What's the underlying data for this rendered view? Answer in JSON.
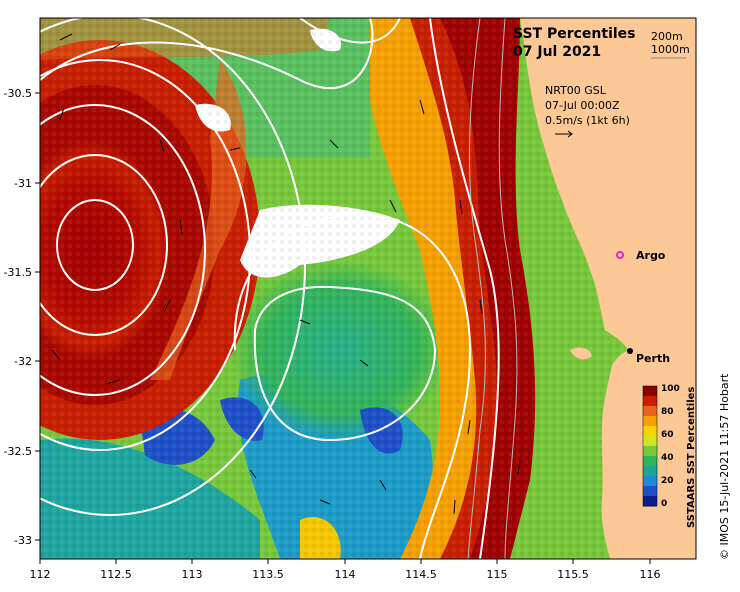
{
  "title": {
    "line1": "SST Percentiles",
    "line2": "07 Jul 2021"
  },
  "depth_legend": {
    "upper": "200m",
    "lower": "1000m"
  },
  "current_info": {
    "line1": "NRT00 GSL",
    "line2": "07-Jul 00:00Z",
    "line3": "0.5m/s (1kt 6h)"
  },
  "markers": {
    "argo": "Argo",
    "perth": "Perth"
  },
  "colorbar": {
    "title": "SSTAARS SST Percentiles",
    "ticks": [
      "100",
      "80",
      "60",
      "40",
      "20",
      "0"
    ],
    "colors": [
      "#8b0000",
      "#c81e00",
      "#e8641e",
      "#f5a000",
      "#fad200",
      "#d2e61e",
      "#78c83c",
      "#32b45a",
      "#1ea596",
      "#1e8cd2",
      "#1e50c8",
      "#0a1e8c"
    ]
  },
  "copyright": "© IMOS 15-Jul-2021 11:57 Hobart",
  "axes": {
    "x_ticks": [
      "112",
      "112.5",
      "113",
      "113.5",
      "114",
      "114.5",
      "115",
      "115.5",
      "116"
    ],
    "y_ticks": [
      "-30.5",
      "-31",
      "-31.5",
      "-32",
      "-32.5",
      "-33"
    ]
  },
  "colors": {
    "land": "#fcc896",
    "background": "#ffffff"
  }
}
